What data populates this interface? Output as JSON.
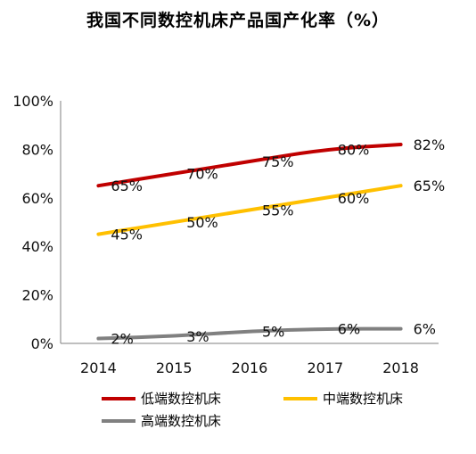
{
  "title": "我国不同数控机床产品国产化率（%）",
  "chart_data": {
    "type": "line",
    "title": "我国不同数控机床产品国产化率（%）",
    "x": [
      "2014",
      "2015",
      "2016",
      "2017",
      "2018"
    ],
    "ylim": [
      0,
      100
    ],
    "yticks": [
      0,
      20,
      40,
      60,
      80,
      100
    ],
    "ytick_labels": [
      "0%",
      "20%",
      "40%",
      "60%",
      "80%",
      "100%"
    ],
    "grid": false,
    "legend_position": "bottom",
    "series": [
      {
        "name": "低端数控机床",
        "values": [
          65,
          70,
          75,
          80,
          82
        ],
        "labels": [
          "65%",
          "70%",
          "75%",
          "80%",
          "82%"
        ],
        "color": "#C00000"
      },
      {
        "name": "中端数控机床",
        "values": [
          45,
          50,
          55,
          60,
          65
        ],
        "labels": [
          "45%",
          "50%",
          "55%",
          "60%",
          "65%"
        ],
        "color": "#FFC000"
      },
      {
        "name": "高端数控机床",
        "values": [
          2,
          3,
          5,
          6,
          6
        ],
        "labels": [
          "2%",
          "3%",
          "5%",
          "6%",
          "6%"
        ],
        "color": "#808080"
      }
    ]
  }
}
